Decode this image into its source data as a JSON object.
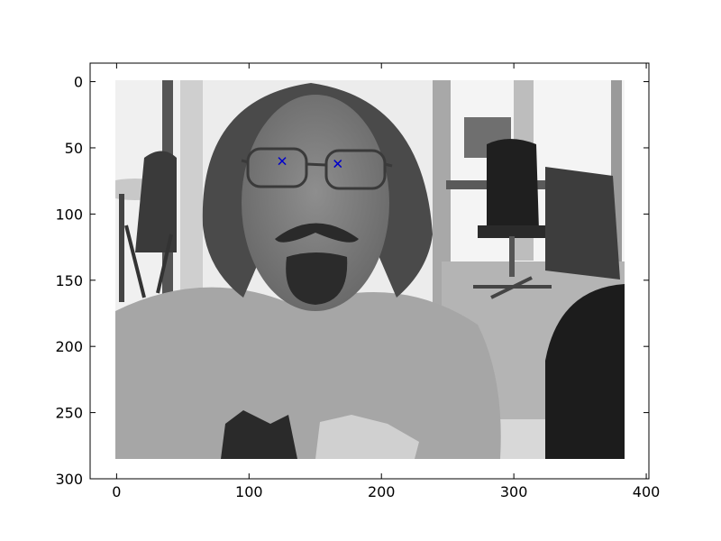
{
  "chart_data": {
    "type": "scatter",
    "title": "",
    "xlabel": "",
    "ylabel": "",
    "background_image": {
      "content": "grayscale photograph of a man with glasses, long hair and a goatee, in an office",
      "extent_x": [
        0,
        384
      ],
      "extent_y": [
        286,
        0
      ]
    },
    "xlim": [
      -20,
      402
    ],
    "ylim": [
      300,
      -14
    ],
    "y_inverted": true,
    "x_ticks": [
      0,
      100,
      200,
      300,
      400
    ],
    "y_ticks": [
      0,
      50,
      100,
      150,
      200,
      250,
      300
    ],
    "x_tick_labels": [
      "0",
      "100",
      "200",
      "300",
      "400"
    ],
    "y_tick_labels": [
      "0",
      "50",
      "100",
      "150",
      "200",
      "250",
      "300"
    ],
    "grid": false,
    "series": [
      {
        "marker": "x",
        "color": "#0000cc",
        "points": [
          {
            "x": 125,
            "y": 60
          },
          {
            "x": 167,
            "y": 62
          }
        ]
      }
    ]
  }
}
